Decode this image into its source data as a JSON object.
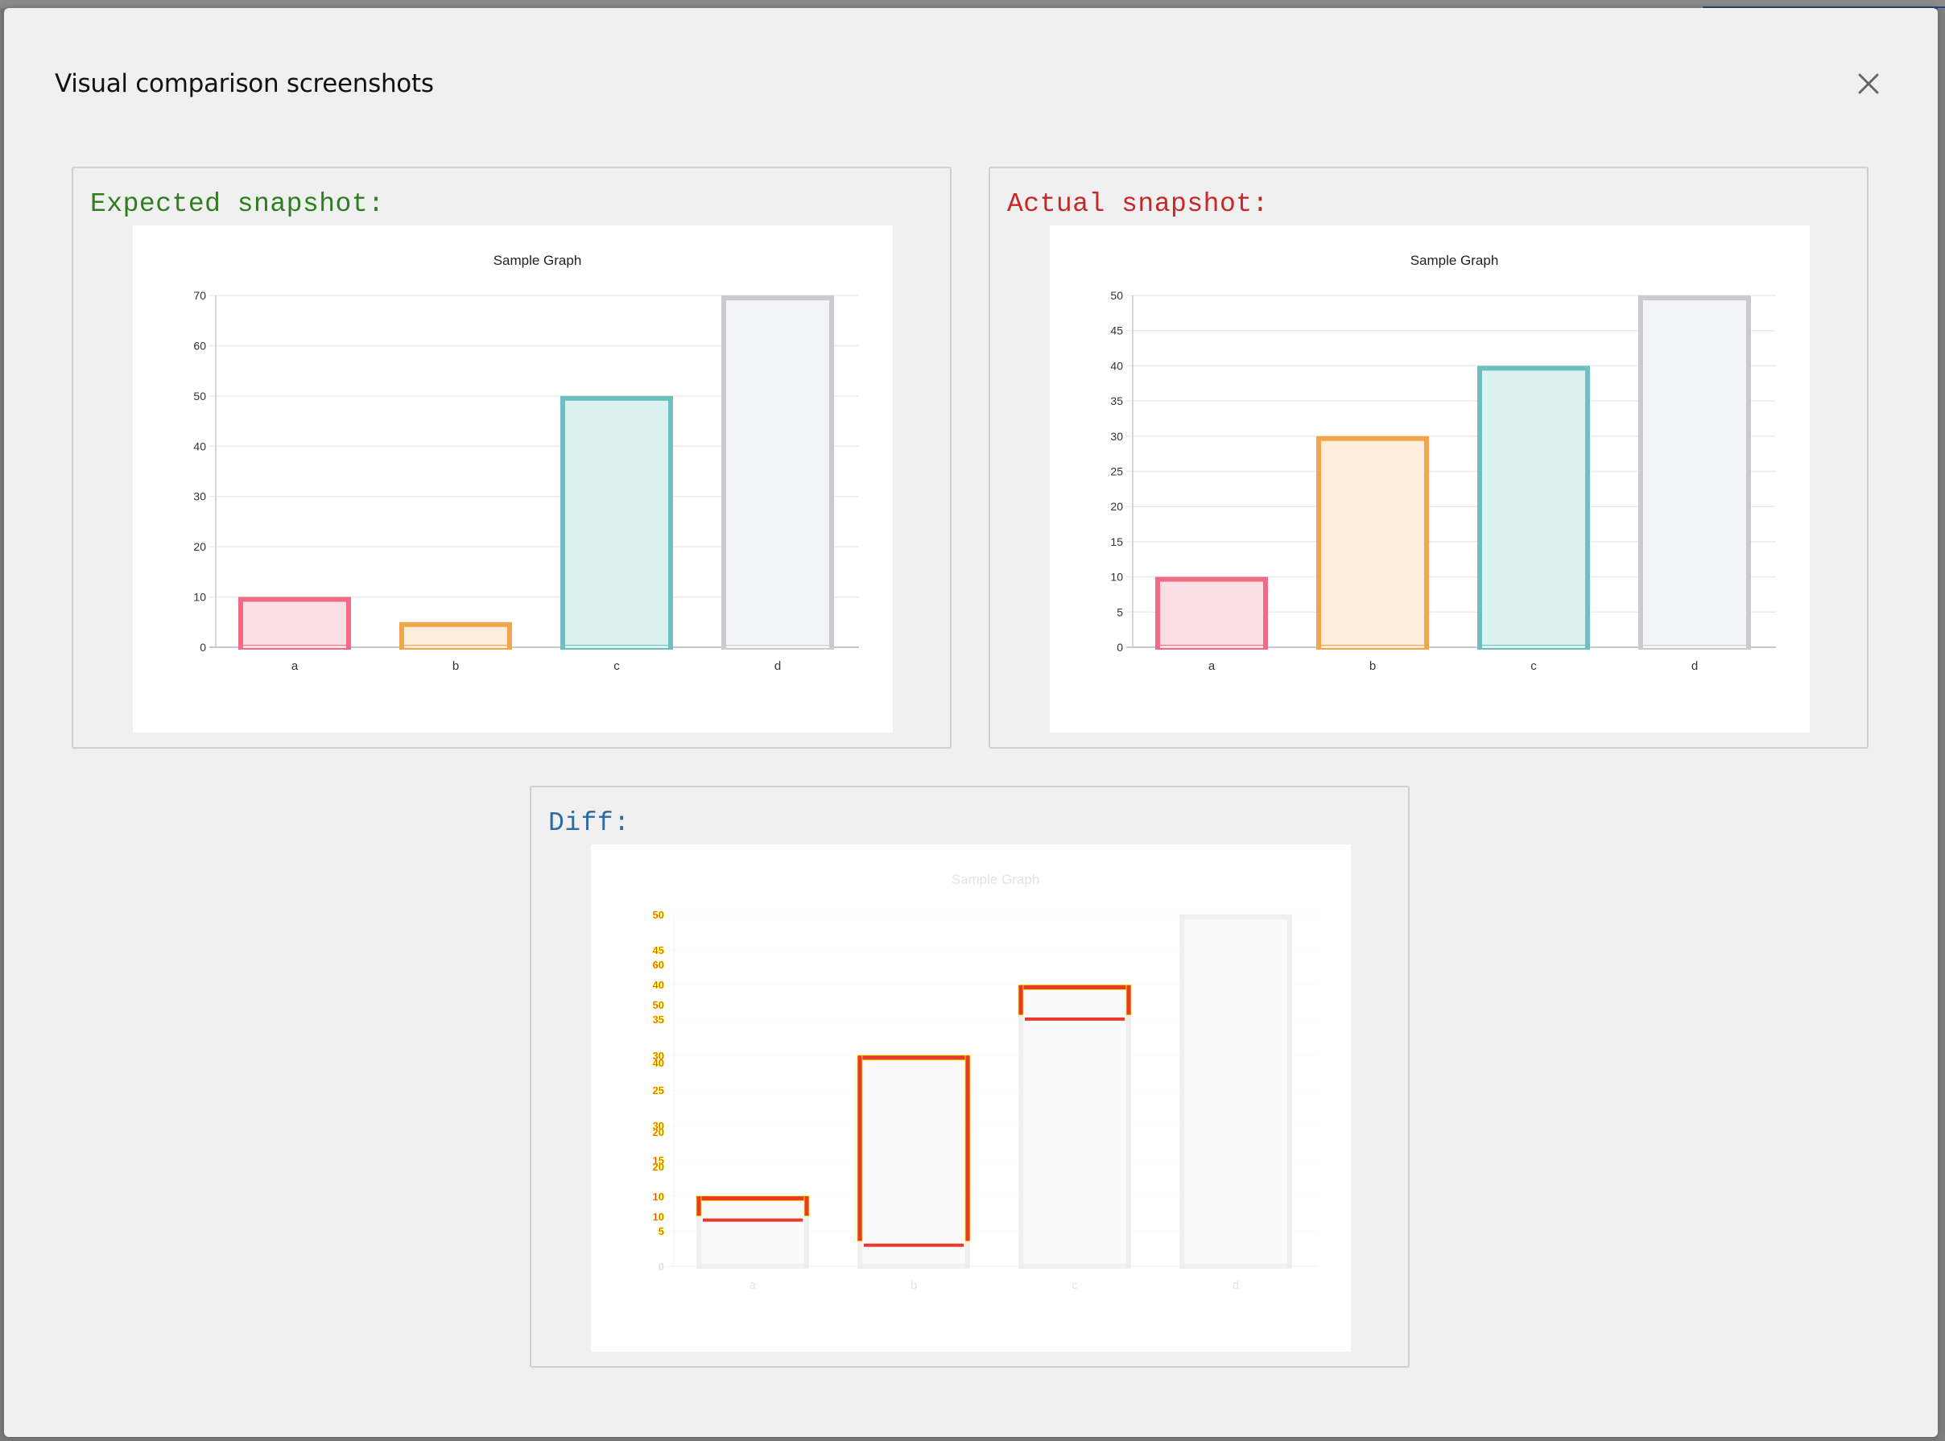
{
  "modal": {
    "title": "Visual comparison screenshots",
    "close_icon": "close-icon"
  },
  "colors": {
    "expected_label": "#2e7d1f",
    "actual_label": "#c62828",
    "diff_label": "#2f6aa3",
    "diff_highlight": "#e8392a",
    "diff_highlight_edge": "#fff200",
    "gridline": "#ececec",
    "axis": "#c8c8c8",
    "tick_text": "#333333"
  },
  "panels": {
    "expected": {
      "label": "Expected snapshot:"
    },
    "actual": {
      "label": "Actual snapshot:"
    },
    "diff": {
      "label": "Diff:"
    }
  },
  "chart_data": [
    {
      "id": "expected",
      "type": "bar",
      "title": "Sample Graph",
      "categories": [
        "a",
        "b",
        "c",
        "d"
      ],
      "values": [
        10,
        5,
        50,
        70
      ],
      "ylim": [
        0,
        70
      ],
      "yticks": [
        0,
        10,
        20,
        30,
        40,
        50,
        60,
        70
      ],
      "xlabel": "",
      "ylabel": "",
      "grid": true,
      "bar_colors": [
        {
          "border": "#f06b86",
          "fill": "#fae0e5"
        },
        {
          "border": "#f3a54a",
          "fill": "#fdeedb"
        },
        {
          "border": "#6dc0c0",
          "fill": "#def1f2"
        },
        {
          "border": "#cbcbcf",
          "fill": "#f3f4f6"
        }
      ]
    },
    {
      "id": "actual",
      "type": "bar",
      "title": "Sample Graph",
      "categories": [
        "a",
        "b",
        "c",
        "d"
      ],
      "values": [
        10,
        30,
        40,
        50
      ],
      "ylim": [
        0,
        50
      ],
      "yticks": [
        0,
        5,
        10,
        15,
        20,
        25,
        30,
        35,
        40,
        45,
        50
      ],
      "xlabel": "",
      "ylabel": "",
      "grid": true,
      "bar_colors": [
        {
          "border": "#f06b86",
          "fill": "#fae0e5"
        },
        {
          "border": "#f3a54a",
          "fill": "#fdeedb"
        },
        {
          "border": "#6dc0c0",
          "fill": "#def1f2"
        },
        {
          "border": "#cbcbcf",
          "fill": "#f3f4f6"
        }
      ]
    },
    {
      "id": "diff",
      "type": "bar",
      "title": "Sample Graph",
      "categories": [
        "a",
        "b",
        "c",
        "d"
      ],
      "note": "Pixel diff overlay: faded base chart with changed regions outlined in red",
      "changed_bars": [
        {
          "category": "a",
          "expected_value": 10,
          "actual_value": 10
        },
        {
          "category": "b",
          "expected_value": 5,
          "actual_value": 30
        },
        {
          "category": "c",
          "expected_value": 50,
          "actual_value": 40
        }
      ],
      "unchanged_bars": [
        "d"
      ],
      "diff_tick_labels": [
        "50",
        "45",
        "60",
        "40",
        "50",
        "35",
        "30",
        "40",
        "25",
        "30",
        "20",
        "15",
        "20",
        "10",
        "10",
        "5",
        "0"
      ]
    }
  ]
}
